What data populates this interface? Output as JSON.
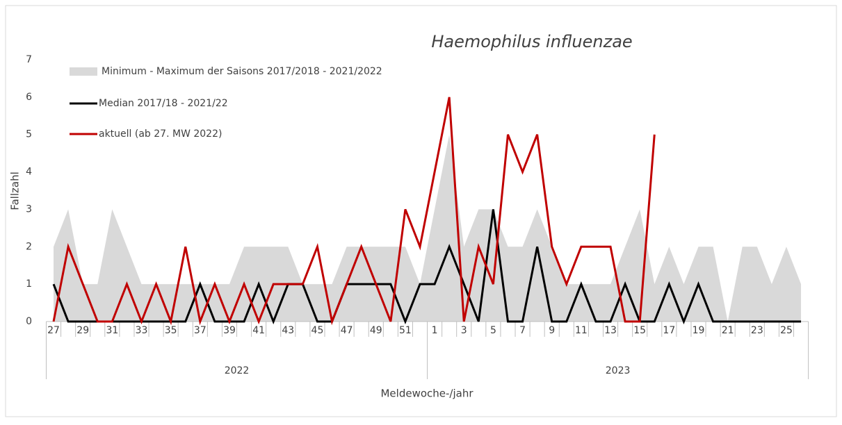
{
  "chart_data": {
    "type": "line",
    "title": "Haemophilus influenzae",
    "x_label": "Meldewoche-/jahr",
    "y_label": "Fallzahl",
    "categories": [
      "27",
      null,
      "29",
      null,
      "31",
      null,
      "33",
      null,
      "35",
      null,
      "37",
      null,
      "39",
      null,
      "41",
      null,
      "43",
      null,
      "45",
      null,
      "47",
      null,
      "49",
      null,
      "51",
      null,
      "1",
      null,
      "3",
      null,
      "5",
      null,
      "7",
      null,
      "9",
      null,
      "11",
      null,
      "13",
      null,
      "15",
      null,
      "17",
      null,
      "19",
      null,
      "21",
      null,
      "23",
      null,
      "25",
      null
    ],
    "x_groups": [
      "2022",
      "2023"
    ],
    "ylim": [
      0,
      7
    ],
    "yticks": [
      0,
      1,
      2,
      3,
      4,
      5,
      6,
      7
    ],
    "band": {
      "name": "Minimum - Maximum der Saisons 2017/2018 - 2021/2022",
      "color": "#d9d9d9",
      "min": [
        0,
        0,
        0,
        0,
        0,
        0,
        0,
        0,
        0,
        0,
        0,
        0,
        0,
        0,
        0,
        0,
        0,
        0,
        0,
        0,
        0,
        0,
        0,
        0,
        0,
        0,
        0,
        0,
        0,
        0,
        0,
        0,
        0,
        0,
        0,
        0,
        0,
        0,
        0,
        0,
        0,
        0,
        0,
        0,
        0,
        0,
        0,
        0,
        0,
        0,
        0,
        0
      ],
      "max": [
        2,
        3,
        1,
        1,
        3,
        2,
        1,
        1,
        1,
        1,
        1,
        1,
        1,
        2,
        2,
        2,
        2,
        1,
        1,
        1,
        2,
        2,
        2,
        2,
        2,
        1,
        3,
        5,
        2,
        3,
        3,
        2,
        2,
        3,
        2,
        1,
        1,
        1,
        1,
        2,
        3,
        1,
        2,
        1,
        2,
        2,
        0,
        2,
        2,
        1,
        2,
        1
      ]
    },
    "series": [
      {
        "name": "Median 2017/18 - 2021/22",
        "color": "#000000",
        "values": [
          1,
          0,
          0,
          0,
          0,
          0,
          0,
          0,
          0,
          0,
          1,
          0,
          0,
          0,
          1,
          0,
          1,
          1,
          0,
          0,
          1,
          1,
          1,
          1,
          0,
          1,
          1,
          2,
          1,
          0,
          3,
          0,
          0,
          2,
          0,
          0,
          1,
          0,
          0,
          1,
          0,
          0,
          1,
          0,
          1,
          0,
          0,
          0,
          0,
          0,
          0,
          0
        ]
      },
      {
        "name": "aktuell (ab 27. MW 2022)",
        "color": "#c00000",
        "values": [
          0,
          2,
          1,
          0,
          0,
          1,
          0,
          1,
          0,
          2,
          0,
          1,
          0,
          1,
          0,
          1,
          1,
          1,
          2,
          0,
          1,
          2,
          1,
          0,
          3,
          2,
          4,
          6,
          0,
          2,
          1,
          5,
          4,
          5,
          2,
          1,
          2,
          2,
          2,
          0,
          0,
          5,
          null,
          null,
          null,
          null,
          null,
          null,
          null,
          null,
          null,
          null
        ]
      }
    ]
  }
}
